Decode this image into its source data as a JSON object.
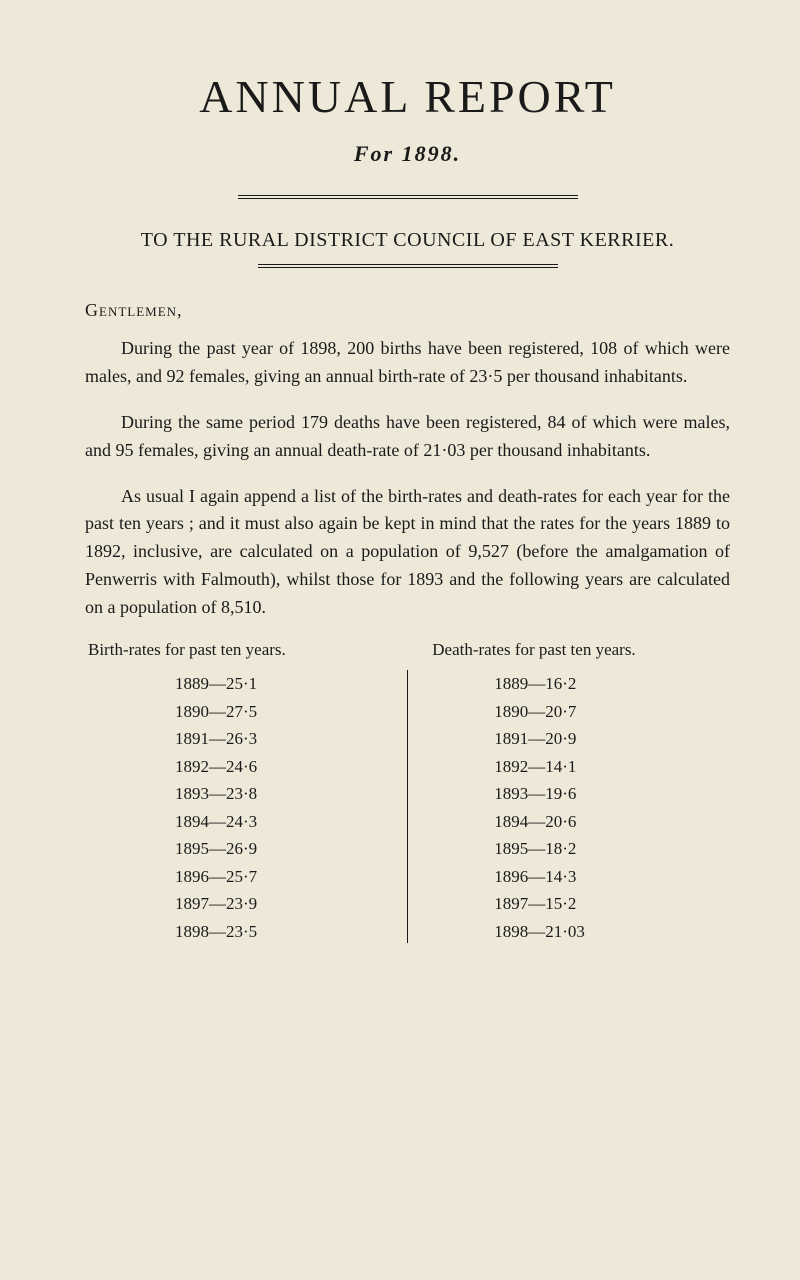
{
  "title": "ANNUAL REPORT",
  "subtitle": "For 1898.",
  "council": "TO THE RURAL DISTRICT COUNCIL OF EAST KERRIER.",
  "salutation": "Gentlemen,",
  "paragraphs": [
    "During the past year of 1898, 200 births have been registered, 108 of which were males, and 92 females, giving an annual birth-rate of 23·5 per thousand inhabitants.",
    "During the same period 179 deaths have been registered, 84 of which were males, and 95 females, giving an annual death-rate of 21·03 per thousand inhabitants.",
    "As usual I again append a list of the birth-rates and death-rates for each year for the past ten years ; and it must also again be kept in mind that the rates for the years 1889 to 1892, inclusive, are calculated on a population of 9,527 (before the amalgamation of Penwerris with Falmouth), whilst those for 1893 and the following years are calculated on a population of 8,510."
  ],
  "birth_header": "Birth-rates for past ten years.",
  "death_header": "Death-rates for past ten years.",
  "birth_rates": [
    {
      "year": "1889",
      "value": "25·1"
    },
    {
      "year": "1890",
      "value": "27·5"
    },
    {
      "year": "1891",
      "value": "26·3"
    },
    {
      "year": "1892",
      "value": "24·6"
    },
    {
      "year": "1893",
      "value": "23·8"
    },
    {
      "year": "1894",
      "value": "24·3"
    },
    {
      "year": "1895",
      "value": "26·9"
    },
    {
      "year": "1896",
      "value": "25·7"
    },
    {
      "year": "1897",
      "value": "23·9"
    },
    {
      "year": "1898",
      "value": "23·5"
    }
  ],
  "death_rates": [
    {
      "year": "1889",
      "value": "16·2"
    },
    {
      "year": "1890",
      "value": "20·7"
    },
    {
      "year": "1891",
      "value": "20·9"
    },
    {
      "year": "1892",
      "value": "14·1"
    },
    {
      "year": "1893",
      "value": "19·6"
    },
    {
      "year": "1894",
      "value": "20·6"
    },
    {
      "year": "1895",
      "value": "18·2"
    },
    {
      "year": "1896",
      "value": "14·3"
    },
    {
      "year": "1897",
      "value": "15·2"
    },
    {
      "year": "1898",
      "value": "21·03"
    }
  ],
  "colors": {
    "background": "#ede8d8",
    "text": "#1a1a1a"
  },
  "typography": {
    "title_fontsize": 46,
    "subtitle_fontsize": 22,
    "body_fontsize": 18,
    "rate_fontsize": 17
  }
}
